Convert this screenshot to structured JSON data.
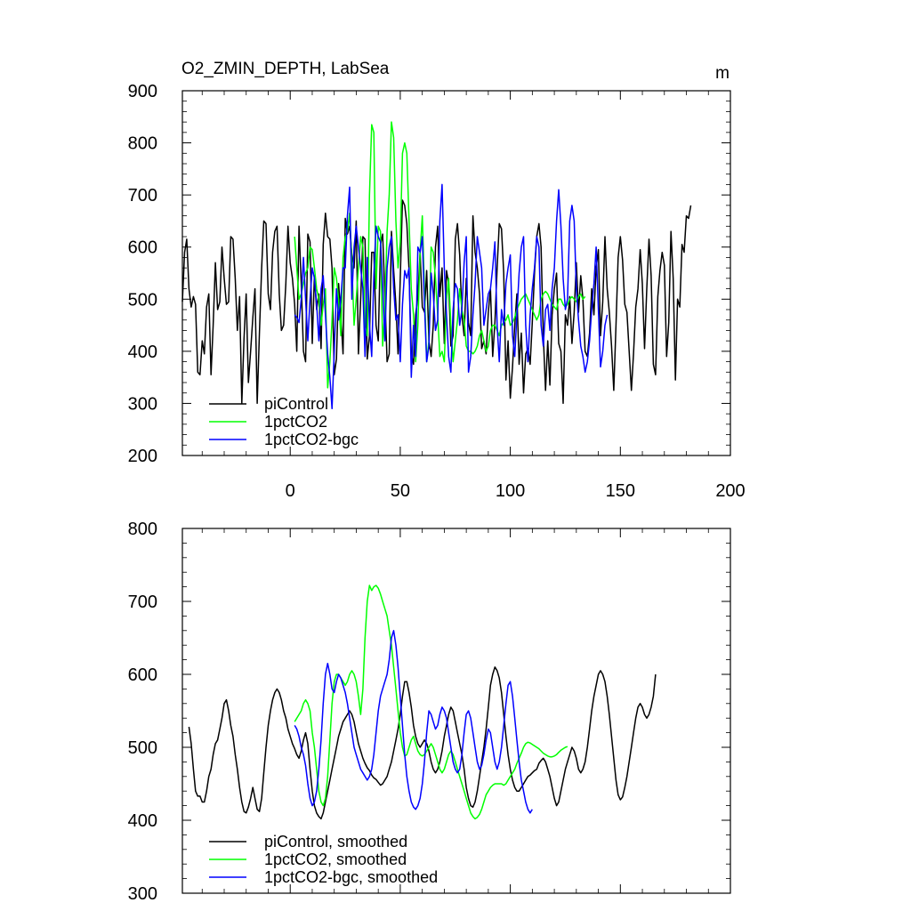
{
  "chart_data": [
    {
      "type": "line",
      "title": "O2_ZMIN_DEPTH, LabSea",
      "units": "m",
      "xlabel": "",
      "ylabel": "",
      "xlim": [
        -49,
        200
      ],
      "ylim": [
        200,
        900
      ],
      "xticks": [
        0,
        50,
        100,
        150,
        200
      ],
      "yticks": [
        200,
        300,
        400,
        500,
        600,
        700,
        800,
        900
      ],
      "legend_position": "bottom-left",
      "series": [
        {
          "name": "piControl",
          "color": "#000000",
          "x_start": -49,
          "values": [
            495,
            590,
            615,
            520,
            485,
            505,
            490,
            360,
            355,
            420,
            395,
            485,
            510,
            355,
            450,
            570,
            480,
            495,
            600,
            540,
            490,
            495,
            620,
            615,
            540,
            440,
            505,
            300,
            425,
            510,
            340,
            400,
            465,
            520,
            300,
            435,
            560,
            650,
            645,
            510,
            480,
            590,
            630,
            640,
            510,
            440,
            450,
            530,
            640,
            570,
            540,
            490,
            400,
            640,
            530,
            400,
            380,
            625,
            610,
            415,
            545,
            480,
            510,
            405,
            605,
            665,
            620,
            615,
            560,
            355,
            385,
            530,
            470,
            395,
            655,
            625,
            640,
            585,
            560,
            650,
            395,
            500,
            620,
            615,
            385,
            430,
            590,
            590,
            450,
            420,
            605,
            625,
            510,
            380,
            395,
            630,
            555,
            490,
            395,
            540,
            690,
            680,
            645,
            555,
            395,
            375,
            470,
            505,
            590,
            485,
            475,
            555,
            420,
            390,
            450,
            600,
            640,
            505,
            560,
            415,
            555,
            530,
            410,
            430,
            615,
            645,
            585,
            470,
            430,
            540,
            455,
            430,
            660,
            590,
            560,
            510,
            405,
            420,
            395,
            475,
            520,
            390,
            455,
            560,
            645,
            635,
            550,
            345,
            420,
            310,
            370,
            450,
            510,
            375,
            435,
            320,
            395,
            405,
            375,
            455,
            550,
            620,
            645,
            600,
            430,
            325,
            420,
            335,
            470,
            520,
            550,
            415,
            400,
            300,
            470,
            450,
            505,
            415,
            475,
            570,
            475,
            545,
            500,
            400,
            390,
            435,
            520,
            470,
            560,
            595,
            430,
            495,
            620,
            520,
            475,
            410,
            325,
            450,
            580,
            620,
            575,
            490,
            475,
            400,
            325,
            395,
            485,
            520,
            595,
            530,
            405,
            520,
            615,
            545,
            375,
            355,
            505,
            555,
            590,
            565,
            390,
            455,
            630,
            540,
            345,
            500,
            485,
            605,
            590,
            660,
            655,
            680
          ]
        },
        {
          "name": "1pctCO2",
          "color": "#00ff00",
          "x_start": 2,
          "values": [
            620,
            560,
            500,
            510,
            530,
            550,
            560,
            600,
            595,
            560,
            520,
            500,
            450,
            490,
            520,
            330,
            380,
            460,
            560,
            540,
            500,
            430,
            580,
            620,
            630,
            665,
            570,
            450,
            500,
            560,
            620,
            600,
            450,
            430,
            700,
            835,
            820,
            520,
            640,
            630,
            410,
            480,
            630,
            700,
            840,
            810,
            650,
            560,
            610,
            780,
            800,
            780,
            650,
            520,
            470,
            380,
            450,
            590,
            660,
            520,
            380,
            420,
            600,
            590,
            540,
            470,
            390,
            400,
            380,
            500,
            540,
            450,
            380,
            420,
            460,
            520,
            480,
            460,
            410,
            400,
            400,
            395,
            400,
            410,
            430,
            440,
            420,
            400,
            410,
            440,
            450,
            450,
            440,
            430,
            450,
            455,
            460,
            470,
            450,
            455,
            465,
            480,
            490,
            500,
            505,
            510,
            500,
            490,
            480,
            470,
            460,
            470,
            500,
            510,
            515,
            510,
            500,
            490,
            485,
            480,
            500,
            500,
            490,
            485,
            490,
            500,
            505,
            500,
            495,
            505,
            510,
            500,
            505
          ]
        },
        {
          "name": "1pctCO2-bgc",
          "color": "#0000ff",
          "x_start": 2,
          "values": [
            470,
            465,
            455,
            500,
            580,
            500,
            420,
            500,
            560,
            540,
            490,
            420,
            520,
            545,
            470,
            395,
            350,
            290,
            400,
            520,
            460,
            500,
            560,
            560,
            660,
            715,
            500,
            600,
            640,
            600,
            560,
            520,
            390,
            580,
            450,
            390,
            545,
            640,
            620,
            610,
            530,
            420,
            560,
            600,
            620,
            520,
            460,
            470,
            380,
            490,
            555,
            540,
            560,
            350,
            450,
            390,
            600,
            590,
            620,
            490,
            380,
            410,
            550,
            510,
            440,
            460,
            650,
            720,
            560,
            470,
            390,
            360,
            480,
            530,
            520,
            450,
            480,
            570,
            620,
            360,
            390,
            470,
            530,
            620,
            590,
            560,
            450,
            480,
            510,
            520,
            560,
            610,
            450,
            380,
            480,
            450,
            530,
            560,
            585,
            430,
            390,
            470,
            550,
            600,
            620,
            450,
            380,
            470,
            520,
            560,
            620,
            600,
            450,
            410,
            480,
            490,
            440,
            520,
            560,
            650,
            710,
            640,
            540,
            480,
            500,
            650,
            680,
            650,
            520,
            460,
            410,
            390,
            360,
            380,
            420,
            480,
            530,
            600,
            480,
            370,
            400,
            450,
            470
          ]
        }
      ]
    },
    {
      "type": "line",
      "title": "",
      "xlabel": "",
      "ylabel": "",
      "xlim": [
        -49,
        200
      ],
      "ylim": [
        300,
        800
      ],
      "xticks": [
        0,
        50,
        100,
        150,
        200
      ],
      "yticks": [
        300,
        400,
        500,
        600,
        700,
        800
      ],
      "legend_position": "bottom-left",
      "series": [
        {
          "name": "piControl, smoothed",
          "color": "#000000",
          "x_start": -46,
          "values": [
            528,
            505,
            470,
            440,
            433,
            433,
            425,
            425,
            440,
            460,
            470,
            490,
            505,
            510,
            525,
            540,
            560,
            565,
            550,
            530,
            515,
            490,
            470,
            445,
            425,
            412,
            410,
            418,
            430,
            445,
            430,
            415,
            412,
            430,
            465,
            500,
            530,
            550,
            565,
            575,
            580,
            575,
            565,
            550,
            540,
            525,
            515,
            505,
            498,
            490,
            485,
            495,
            510,
            520,
            505,
            470,
            440,
            420,
            410,
            405,
            402,
            410,
            425,
            440,
            455,
            470,
            485,
            500,
            515,
            525,
            535,
            540,
            545,
            550,
            545,
            535,
            520,
            505,
            495,
            485,
            478,
            472,
            468,
            462,
            458,
            456,
            452,
            448,
            450,
            455,
            460,
            470,
            480,
            495,
            510,
            525,
            545,
            570,
            590,
            590,
            575,
            555,
            530,
            515,
            505,
            500,
            505,
            510,
            505,
            495,
            480,
            470,
            465,
            470,
            480,
            495,
            515,
            530,
            545,
            555,
            550,
            535,
            520,
            505,
            490,
            470,
            445,
            430,
            420,
            418,
            425,
            440,
            460,
            480,
            500,
            525,
            555,
            585,
            600,
            610,
            605,
            595,
            575,
            545,
            515,
            490,
            470,
            455,
            445,
            440,
            440,
            445,
            450,
            455,
            460,
            462,
            465,
            468,
            470,
            478,
            482,
            485,
            480,
            470,
            460,
            445,
            430,
            420,
            425,
            440,
            455,
            470,
            480,
            490,
            500,
            495,
            485,
            470,
            465,
            470,
            480,
            500,
            525,
            550,
            570,
            585,
            600,
            605,
            600,
            590,
            570,
            545,
            515,
            485,
            455,
            435,
            428,
            432,
            445,
            460,
            480,
            500,
            520,
            540,
            555,
            560,
            555,
            545,
            540,
            545,
            555,
            570,
            600
          ]
        },
        {
          "name": "1pctCO2, smoothed",
          "color": "#00ff00",
          "x_start": 2,
          "values": [
            535,
            540,
            545,
            550,
            560,
            565,
            560,
            550,
            520,
            500,
            470,
            440,
            425,
            420,
            430,
            460,
            510,
            560,
            590,
            600,
            600,
            595,
            590,
            585,
            590,
            600,
            605,
            600,
            590,
            570,
            545,
            580,
            650,
            700,
            722,
            715,
            720,
            722,
            718,
            710,
            700,
            690,
            680,
            660,
            640,
            610,
            580,
            550,
            520,
            500,
            488,
            490,
            500,
            510,
            515,
            505,
            495,
            490,
            488,
            490,
            495,
            500,
            505,
            500,
            490,
            480,
            470,
            465,
            470,
            480,
            490,
            495,
            490,
            480,
            470,
            460,
            450,
            440,
            430,
            420,
            410,
            405,
            402,
            404,
            408,
            415,
            425,
            435,
            440,
            445,
            448,
            450,
            450,
            450,
            450,
            448,
            450,
            455,
            460,
            465,
            470,
            478,
            485,
            492,
            500,
            505,
            507,
            506,
            504,
            502,
            500,
            498,
            495,
            492,
            490,
            488,
            487,
            487,
            488,
            490,
            493,
            496,
            498,
            500,
            501
          ]
        },
        {
          "name": "1pctCO2-bgc, smoothed",
          "color": "#0000ff",
          "x_start": 2,
          "values": [
            530,
            525,
            515,
            500,
            490,
            475,
            450,
            430,
            420,
            425,
            440,
            470,
            510,
            560,
            600,
            615,
            600,
            580,
            575,
            590,
            600,
            595,
            585,
            575,
            560,
            540,
            520,
            500,
            490,
            480,
            470,
            465,
            460,
            455,
            460,
            470,
            490,
            520,
            550,
            570,
            580,
            590,
            600,
            620,
            650,
            660,
            640,
            610,
            570,
            530,
            490,
            460,
            440,
            425,
            418,
            415,
            420,
            430,
            450,
            480,
            520,
            550,
            545,
            535,
            525,
            530,
            545,
            555,
            550,
            540,
            520,
            500,
            480,
            470,
            465,
            470,
            490,
            520,
            545,
            550,
            540,
            520,
            500,
            480,
            470,
            475,
            490,
            510,
            525,
            520,
            500,
            480,
            470,
            480,
            500,
            530,
            560,
            585,
            590,
            570,
            540,
            510,
            480,
            455,
            440,
            425,
            415,
            410,
            415
          ]
        }
      ]
    }
  ]
}
